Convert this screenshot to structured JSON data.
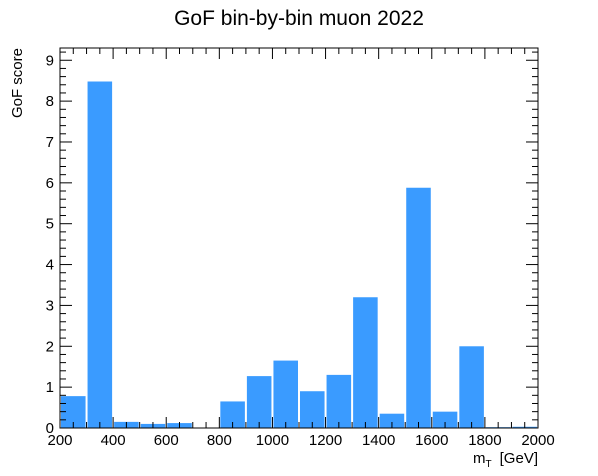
{
  "chart_data": {
    "type": "bar",
    "title": "GoF bin-by-bin muon 2022",
    "xlabel_main": "m",
    "xlabel_sub": "T",
    "xlabel_unit": "[GeV]",
    "ylabel": "GoF score",
    "xlim": [
      200,
      2000
    ],
    "ylim": [
      0,
      9.3
    ],
    "bin_width": 100,
    "bin_edges_start": [
      200,
      300,
      400,
      500,
      600,
      700,
      800,
      900,
      1000,
      1100,
      1200,
      1300,
      1400,
      1500,
      1600,
      1700,
      1800,
      1900
    ],
    "values": [
      0.78,
      8.48,
      0.15,
      0.1,
      0.12,
      0.01,
      0.65,
      1.27,
      1.65,
      0.9,
      1.3,
      3.2,
      0.35,
      5.88,
      0.4,
      2.0,
      0.02,
      0.03
    ],
    "x_ticks": [
      "200",
      "400",
      "600",
      "800",
      "1000",
      "1200",
      "1400",
      "1600",
      "1800",
      "2000"
    ],
    "y_ticks": [
      "0",
      "1",
      "2",
      "3",
      "4",
      "5",
      "6",
      "7",
      "8",
      "9"
    ],
    "bar_color": "#3a9bff",
    "grid": false,
    "legend": "none"
  }
}
